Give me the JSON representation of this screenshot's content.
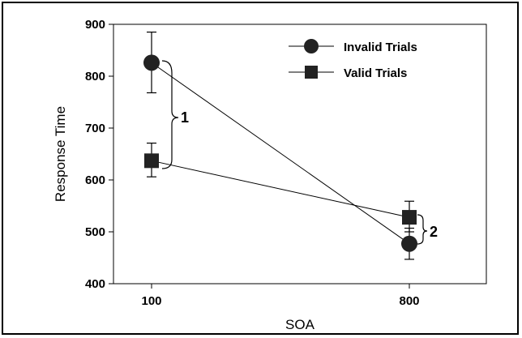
{
  "chart_data": {
    "type": "line",
    "title": "",
    "xlabel": "SOA",
    "ylabel": "Response Time",
    "categories": [
      "100",
      "800"
    ],
    "ylim": [
      400,
      900
    ],
    "yticks": [
      400,
      500,
      600,
      700,
      800,
      900
    ],
    "series": [
      {
        "name": "Invalid Trials",
        "marker": "circle",
        "values": [
          826,
          477
        ],
        "errors": [
          [
            768,
            885
          ],
          [
            447,
            507
          ]
        ]
      },
      {
        "name": "Valid Trials",
        "marker": "square",
        "values": [
          637,
          528
        ],
        "errors": [
          [
            606,
            671
          ],
          [
            500,
            559
          ]
        ]
      }
    ],
    "legend_position": "top-right",
    "annotations": [
      "1",
      "2"
    ],
    "grid": false,
    "marker_color": "#222222",
    "line_color": "#000000"
  }
}
